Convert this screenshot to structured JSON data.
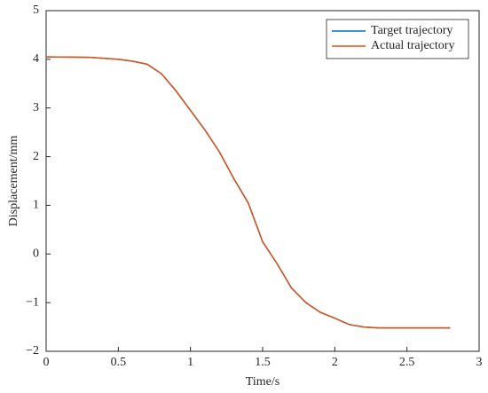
{
  "chart_data": {
    "type": "line",
    "x_label": "Time/s",
    "y_label": "Displacement/mm",
    "x": [
      0,
      0.3,
      0.5,
      0.6,
      0.7,
      0.8,
      0.9,
      1.0,
      1.1,
      1.2,
      1.3,
      1.4,
      1.45,
      1.5,
      1.6,
      1.7,
      1.8,
      1.9,
      2.0,
      2.1,
      2.2,
      2.3,
      2.5,
      2.8
    ],
    "series": [
      {
        "name": "Target trajectory",
        "color": "#0072bd",
        "values": [
          4.05,
          4.04,
          4.0,
          3.96,
          3.9,
          3.7,
          3.35,
          2.95,
          2.55,
          2.1,
          1.55,
          1.05,
          0.65,
          0.25,
          -0.2,
          -0.7,
          -1.0,
          -1.2,
          -1.32,
          -1.45,
          -1.5,
          -1.52,
          -1.52,
          -1.52
        ]
      },
      {
        "name": "Actual trajectory",
        "color": "#d95319",
        "values": [
          4.05,
          4.04,
          4.0,
          3.96,
          3.9,
          3.7,
          3.35,
          2.95,
          2.55,
          2.1,
          1.55,
          1.05,
          0.65,
          0.25,
          -0.2,
          -0.7,
          -1.0,
          -1.2,
          -1.32,
          -1.45,
          -1.5,
          -1.52,
          -1.52,
          -1.52
        ]
      }
    ],
    "xlim": [
      0,
      3
    ],
    "xticks": [
      0,
      0.5,
      1,
      1.5,
      2,
      2.5,
      3
    ],
    "ylim": [
      -2,
      5
    ],
    "yticks": [
      {
        "value": -2,
        "label": "−2"
      },
      {
        "value": -1,
        "label": "−1"
      },
      0,
      1,
      2,
      3,
      4,
      5
    ],
    "legend": "top-right",
    "grid": false
  }
}
